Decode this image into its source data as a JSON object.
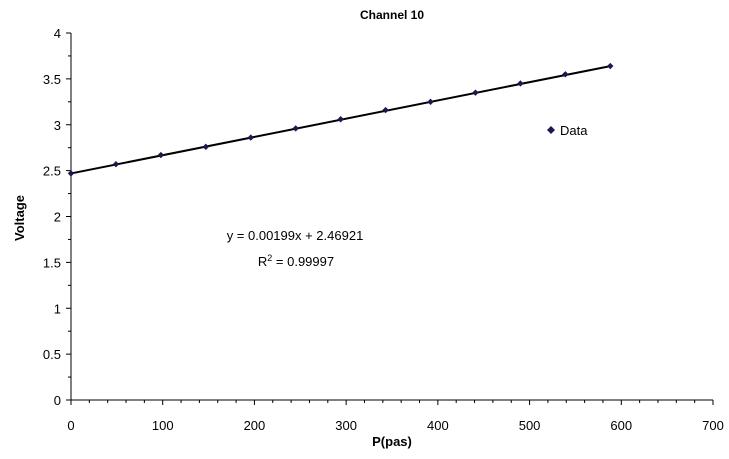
{
  "chart_data": {
    "type": "scatter",
    "title": "Channel 10",
    "xlabel": "P(pas)",
    "ylabel": "Voltage",
    "xlim": [
      0,
      700
    ],
    "ylim": [
      0,
      4
    ],
    "x_ticks": [
      0,
      100,
      200,
      300,
      400,
      500,
      600,
      700
    ],
    "y_ticks": [
      0,
      0.5,
      1,
      1.5,
      2,
      2.5,
      3,
      3.5,
      4
    ],
    "x_tick_labels": [
      "0",
      "100",
      "200",
      "300",
      "400",
      "500",
      "600",
      "700"
    ],
    "y_tick_labels": [
      "0",
      "0.5",
      "1",
      "1.5",
      "2",
      "2.5",
      "3",
      "3.5",
      "4"
    ],
    "series": [
      {
        "name": "Data",
        "marker": "diamond",
        "color": "#1a1a4e",
        "x": [
          0,
          49,
          98,
          147,
          196,
          245,
          294,
          343,
          392,
          441,
          490,
          539,
          588
        ],
        "y": [
          2.47,
          2.57,
          2.67,
          2.76,
          2.86,
          2.96,
          3.06,
          3.16,
          3.25,
          3.35,
          3.45,
          3.55,
          3.64
        ]
      }
    ],
    "trendline": {
      "slope": 0.00199,
      "intercept": 2.46921,
      "x_range": [
        0,
        588
      ],
      "color": "#000000"
    },
    "annotations": {
      "equation": "y = 0.00199x + 2.46921",
      "r_squared_prefix": "R",
      "r_squared_sup": "2",
      "r_squared_value": " = 0.99997"
    },
    "legend": {
      "position": "right",
      "label": "Data"
    },
    "grid": false
  }
}
